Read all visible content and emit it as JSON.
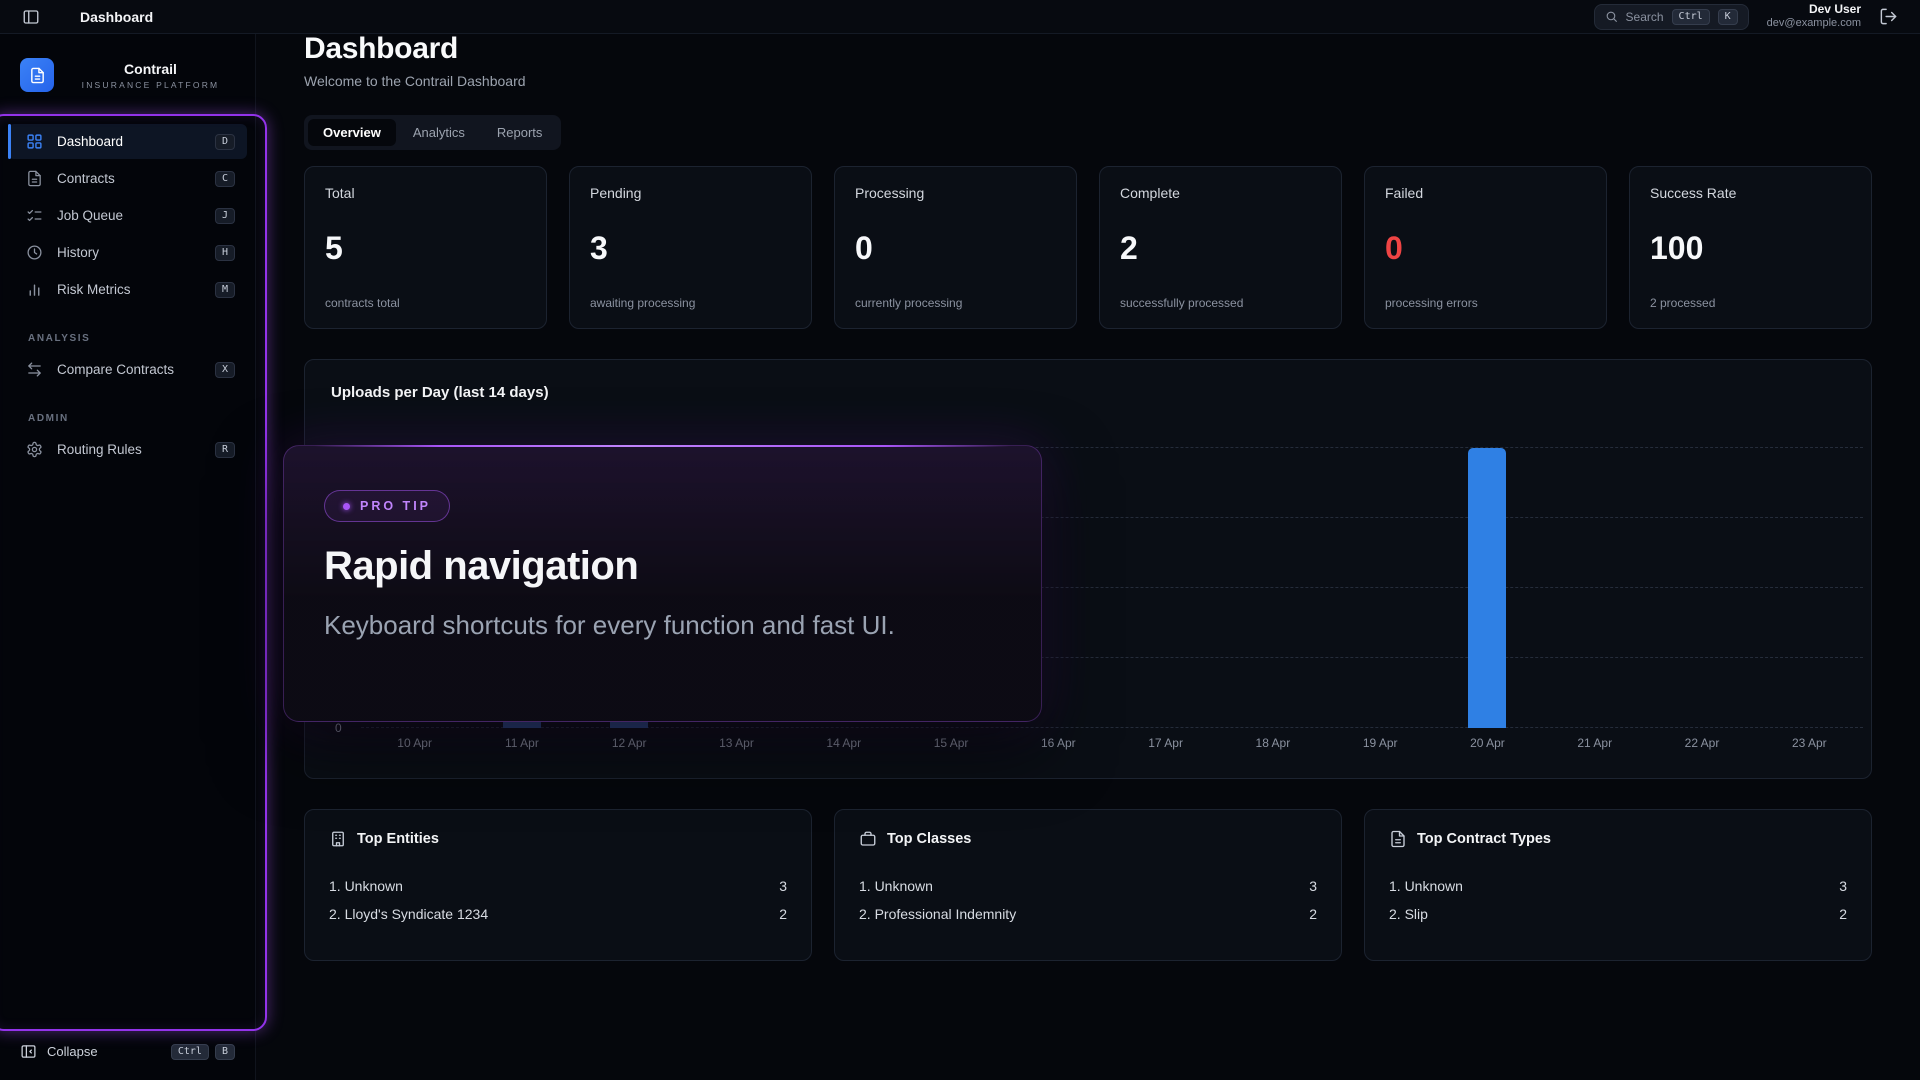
{
  "topbar": {
    "title": "Dashboard",
    "search_label": "Search",
    "search_keys": [
      "Ctrl",
      "K"
    ],
    "user_name": "Dev User",
    "user_email": "dev@example.com"
  },
  "sidebar": {
    "brand_name": "Contrail",
    "brand_tagline": "INSURANCE PLATFORM",
    "brand_icon": "file-text-icon",
    "items": [
      {
        "label": "Dashboard",
        "key": "D",
        "icon": "layout-grid-icon",
        "active": true
      },
      {
        "label": "Contracts",
        "key": "C",
        "icon": "file-text-icon",
        "active": false
      },
      {
        "label": "Job Queue",
        "key": "J",
        "icon": "list-checks-icon",
        "active": false
      },
      {
        "label": "History",
        "key": "H",
        "icon": "clock-icon",
        "active": false
      },
      {
        "label": "Risk Metrics",
        "key": "M",
        "icon": "bar-chart-icon",
        "active": false
      }
    ],
    "analysis_label": "ANALYSIS",
    "analysis_items": [
      {
        "label": "Compare Contracts",
        "key": "X",
        "icon": "arrows-left-right-icon"
      }
    ],
    "admin_label": "ADMIN",
    "admin_items": [
      {
        "label": "Routing Rules",
        "key": "R",
        "icon": "gear-icon"
      }
    ],
    "collapse_label": "Collapse",
    "collapse_keys": [
      "Ctrl",
      "B"
    ]
  },
  "main": {
    "title": "Dashboard",
    "subtitle": "Welcome to the Contrail Dashboard",
    "tabs": [
      {
        "label": "Overview",
        "active": true
      },
      {
        "label": "Analytics",
        "active": false
      },
      {
        "label": "Reports",
        "active": false
      }
    ]
  },
  "stats": [
    {
      "label": "Total",
      "value": "5",
      "sub": "contracts total"
    },
    {
      "label": "Pending",
      "value": "3",
      "sub": "awaiting processing"
    },
    {
      "label": "Processing",
      "value": "0",
      "sub": "currently processing"
    },
    {
      "label": "Complete",
      "value": "2",
      "sub": "successfully processed"
    },
    {
      "label": "Failed",
      "value": "0",
      "sub": "processing errors"
    },
    {
      "label": "Success Rate",
      "value": "100",
      "sub": "2 processed"
    }
  ],
  "chart_data": {
    "type": "bar",
    "title": "Uploads per Day (last 14 days)",
    "categories": [
      "10 Apr",
      "11 Apr",
      "12 Apr",
      "13 Apr",
      "14 Apr",
      "15 Apr",
      "16 Apr",
      "17 Apr",
      "18 Apr",
      "19 Apr",
      "20 Apr",
      "21 Apr",
      "22 Apr",
      "23 Apr"
    ],
    "values": [
      0,
      1,
      1,
      0,
      0,
      0,
      0,
      0,
      0,
      0,
      3,
      0,
      0,
      0
    ],
    "xlabel": "",
    "ylabel": "",
    "ylim": [
      0,
      3
    ],
    "y_axis_zero": "0",
    "grid": "dashed-horizontal",
    "legend": "none",
    "bar_color": "#2f80e4",
    "dimmed_bar_color": "#2b4a84",
    "dimmed_categories": [
      "11 Apr",
      "12 Apr"
    ]
  },
  "info_cards": [
    {
      "title": "Top Entities",
      "icon": "building-icon",
      "rows": [
        {
          "name": "1. Unknown",
          "count": "3"
        },
        {
          "name": "2. Lloyd's Syndicate 1234",
          "count": "2"
        }
      ]
    },
    {
      "title": "Top Classes",
      "icon": "briefcase-icon",
      "rows": [
        {
          "name": "1. Unknown",
          "count": "3"
        },
        {
          "name": "2. Professional Indemnity",
          "count": "2"
        }
      ]
    },
    {
      "title": "Top Contract Types",
      "icon": "file-text-icon",
      "rows": [
        {
          "name": "1. Unknown",
          "count": "3"
        },
        {
          "name": "2. Slip",
          "count": "2"
        }
      ]
    }
  ],
  "popover": {
    "badge": "PRO TIP",
    "title": "Rapid navigation",
    "body": "Keyboard shortcuts for every function and fast UI."
  },
  "colors": {
    "accent_blue": "#3b82f6",
    "spotlight_purple": "#a855f7",
    "failed_red": "#ef4444"
  }
}
